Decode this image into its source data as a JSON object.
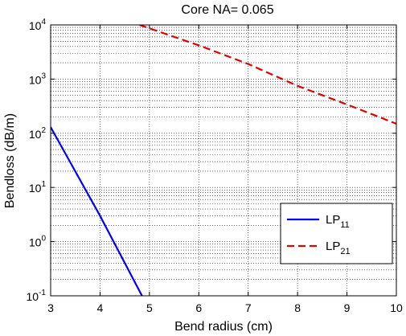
{
  "chart_data": {
    "type": "line",
    "title": "Core NA= 0.065",
    "xlabel": "Bend radius (cm)",
    "ylabel": "Bendloss (dB/m)",
    "xlim": [
      3,
      10
    ],
    "ylim": [
      0.1,
      10000
    ],
    "yscale": "log",
    "grid": "on (major and minor, dotted)",
    "legend_position": "bottom-right",
    "x_ticks": [
      3,
      4,
      5,
      6,
      7,
      8,
      9,
      10
    ],
    "y_ticks": [
      {
        "base": "10",
        "exp": "-1"
      },
      {
        "base": "10",
        "exp": "0"
      },
      {
        "base": "10",
        "exp": "1"
      },
      {
        "base": "10",
        "exp": "2"
      },
      {
        "base": "10",
        "exp": "3"
      },
      {
        "base": "10",
        "exp": "4"
      }
    ],
    "series": [
      {
        "name": "LP",
        "subscript": "11",
        "color": "#0000ff",
        "style": "solid",
        "x": [
          3.0,
          4.0,
          4.85
        ],
        "y": [
          130,
          3.0,
          0.1
        ]
      },
      {
        "name": "LP",
        "subscript": "21",
        "color": "#e00000",
        "style": "dashed",
        "x": [
          4.8,
          6.0,
          7.0,
          8.0,
          9.0,
          10.0
        ],
        "y": [
          10000,
          4200,
          1900,
          750,
          340,
          150
        ]
      }
    ]
  }
}
